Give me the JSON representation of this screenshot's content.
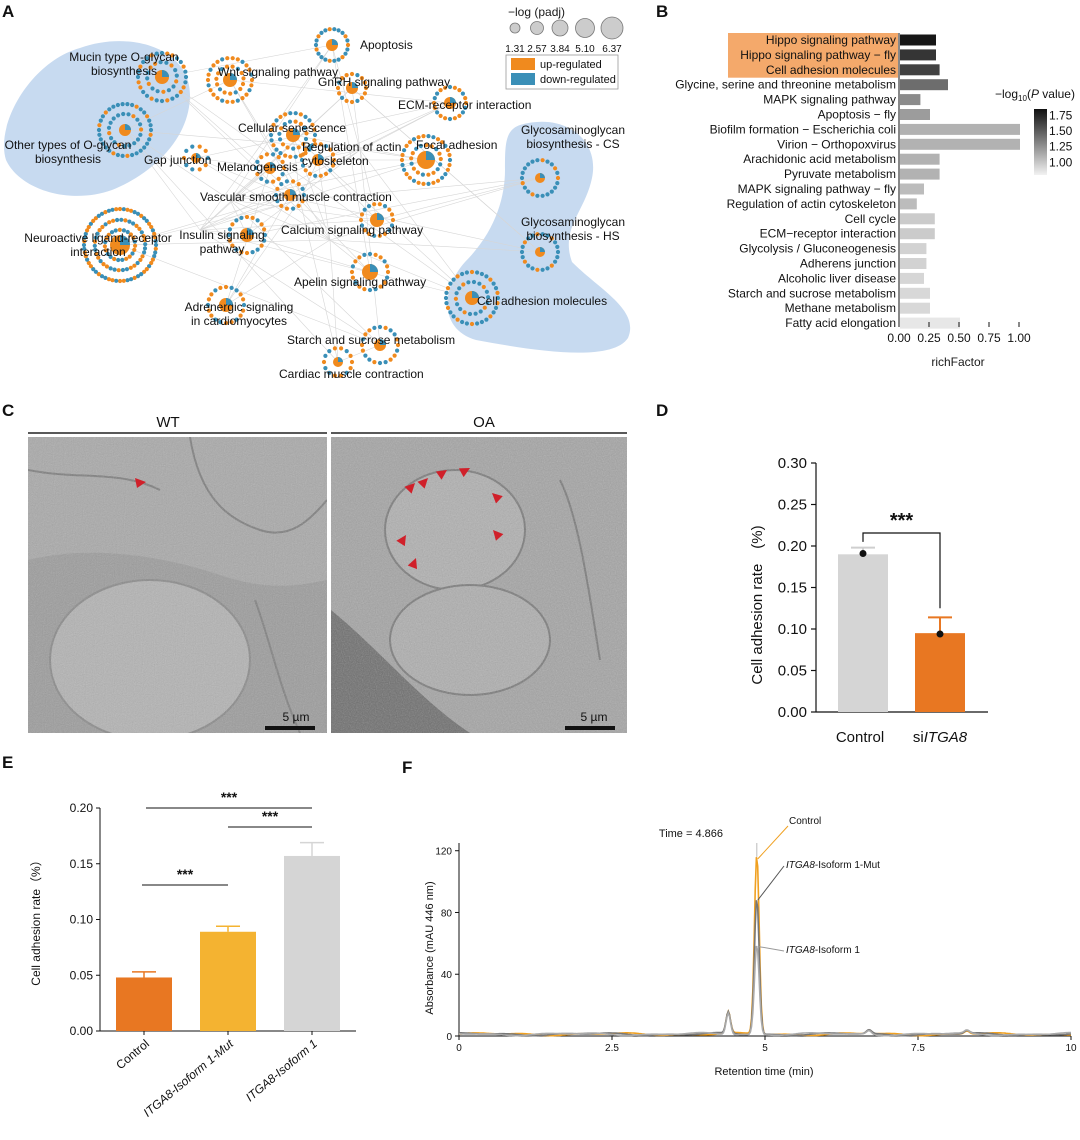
{
  "colors": {
    "up": "#F08A1E",
    "down": "#3A8FB7",
    "highlight": "#F4A96B",
    "blob": "#C7DAF0",
    "orange_bar": "#E87722",
    "yellow_bar": "#F4B331",
    "gray_bar": "#D5D5D5",
    "gray_trace": "#777777",
    "light_trace": "#AAAAAA"
  },
  "panel_letters": [
    "A",
    "B",
    "C",
    "D",
    "E",
    "F"
  ],
  "panel_a": {
    "size_legend_title": "−log (padj)",
    "size_legend_values": [
      "1.31",
      "2.57",
      "3.84",
      "5.10",
      "6.37"
    ],
    "color_legend": [
      "up-regulated",
      "down-regulated"
    ],
    "nodes": [
      {
        "label": "Apoptosis"
      },
      {
        "label": "Wnt signaling pathway"
      },
      {
        "label": "GnRH signaling pathway"
      },
      {
        "label": "Mucin type O-glycan\nbiosynthesis"
      },
      {
        "label": "ECM-receptor interaction"
      },
      {
        "label": "Cellular senescence"
      },
      {
        "label": "Focal adhesion"
      },
      {
        "label": "Glycosaminoglycan\nbiosynthesis - CS"
      },
      {
        "label": "Other types of O-glycan\nbiosynthesis"
      },
      {
        "label": "Gap junction"
      },
      {
        "label": "Melanogenesis"
      },
      {
        "label": "Regulation of actin\ncytoskeleton"
      },
      {
        "label": "Vascular smooth muscle contraction"
      },
      {
        "label": "Glycosaminoglycan\nbiosynthesis - HS"
      },
      {
        "label": "Calcium signaling pathway"
      },
      {
        "label": "Neuroactive ligand-receptor\ninteraction"
      },
      {
        "label": "Insulin signaling\npathway"
      },
      {
        "label": "Apelin signaling pathway"
      },
      {
        "label": "Cell adhesion molecules"
      },
      {
        "label": "Adrenergic signaling\nin cardiomyocytes"
      },
      {
        "label": "Starch and sucrose metabolism"
      },
      {
        "label": "Cardiac muscle contraction"
      }
    ]
  },
  "panel_c": {
    "left_label": "WT",
    "right_label": "OA",
    "scale_bar_left": "5 µm",
    "scale_bar_right": "5 µm"
  },
  "chart_data": [
    {
      "panel": "B",
      "type": "bar",
      "orientation": "horizontal",
      "categories": [
        "Hippo signaling pathway",
        "Hippo signaling pathway − fly",
        "Cell adhesion molecules",
        "Glycine, serine and threonine metabolism",
        "MAPK signaling pathway",
        "Apoptosis − fly",
        "Biofilm formation − Escherichia coli",
        "Virion − Orthopoxvirus",
        "Arachidonic acid metabolism",
        "Pyruvate metabolism",
        "MAPK signaling pathway − fly",
        "Regulation of actin cytoskeleton",
        "Cell cycle",
        "ECM−receptor interaction",
        "Glycolysis / Gluconeogenesis",
        "Adherens junction",
        "Alcoholic liver disease",
        "Starch and sucrose metabolism",
        "Methane metabolism",
        "Fatty acid elongation"
      ],
      "values": [
        0.3,
        0.3,
        0.33,
        0.4,
        0.17,
        0.25,
        1.0,
        1.0,
        0.33,
        0.33,
        0.2,
        0.14,
        0.29,
        0.29,
        0.22,
        0.22,
        0.2,
        0.25,
        0.25,
        0.5
      ],
      "color_values": [
        1.82,
        1.68,
        1.62,
        1.42,
        1.28,
        1.2,
        1.1,
        1.1,
        1.1,
        1.1,
        1.05,
        1.05,
        0.98,
        0.98,
        0.95,
        0.95,
        0.93,
        0.92,
        0.92,
        0.85
      ],
      "highlighted": [
        "Hippo signaling pathway",
        "Hippo signaling pathway − fly",
        "Cell adhesion molecules"
      ],
      "xlabel": "richFactor",
      "xlim": [
        0,
        1
      ],
      "xticks": [
        "0.00",
        "0.25",
        "0.50",
        "0.75",
        "1.00"
      ],
      "colorbar_title_prefix": "−log",
      "colorbar_title_sub": "10",
      "colorbar_title_var": "P",
      "colorbar_title_suffix": " value)",
      "colorbar_ticks": [
        "1.75",
        "1.50",
        "1.25",
        "1.00"
      ],
      "colorbar_range": [
        0.8,
        1.85
      ],
      "grid": false
    },
    {
      "panel": "D",
      "type": "bar",
      "categories": [
        "Control",
        "siITGA8"
      ],
      "category_labels": [
        {
          "plain": "Control",
          "italic": ""
        },
        {
          "plain": "si",
          "italic": "ITGA8"
        }
      ],
      "values": [
        0.19,
        0.095
      ],
      "errors": [
        0.008,
        0.019
      ],
      "points": [
        0.191,
        0.094
      ],
      "ylabel": "Cell adhesion rate　(%)",
      "ylim": [
        0,
        0.3
      ],
      "yticks": [
        "0.00",
        "0.05",
        "0.10",
        "0.15",
        "0.20",
        "0.25",
        "0.30"
      ],
      "significance": "***",
      "grid": false
    },
    {
      "panel": "E",
      "type": "bar",
      "categories": [
        "Control",
        "ITGA8-Isoform 1-Mut",
        "ITGA8-Isoform 1"
      ],
      "values": [
        0.048,
        0.089,
        0.157
      ],
      "errors": [
        0.005,
        0.005,
        0.012
      ],
      "ylabel": "Cell adhesion rate（%）",
      "ylim": [
        0,
        0.2
      ],
      "yticks": [
        "0.00",
        "0.05",
        "0.10",
        "0.15",
        "0.20"
      ],
      "significance": [
        "***",
        "***",
        "***"
      ],
      "grid": false
    },
    {
      "panel": "F",
      "type": "line",
      "annotation": "Time = 4.866",
      "series": [
        {
          "name": "Control",
          "label_plain": "Control",
          "label_italic": "",
          "peak": 116
        },
        {
          "name": "ITGA8-Isoform 1-Mut",
          "label_italic": "ITGA8",
          "label_plain": "-Isoform 1-Mut",
          "peak": 88
        },
        {
          "name": "ITGA8-Isoform 1",
          "label_italic": "ITGA8",
          "label_plain": "-Isoform 1",
          "peak": 58
        }
      ],
      "peak_x": 4.866,
      "minor_peak_x": 4.4,
      "xlabel": "Retention time (min)",
      "ylabel": "Absorbance (mAU 446 nm)",
      "xlim": [
        0,
        10
      ],
      "ylim": [
        0,
        125
      ],
      "xticks": [
        "0",
        "2.5",
        "5",
        "7.5",
        "10"
      ],
      "yticks": [
        "0",
        "40",
        "80",
        "120"
      ],
      "grid": false
    }
  ]
}
